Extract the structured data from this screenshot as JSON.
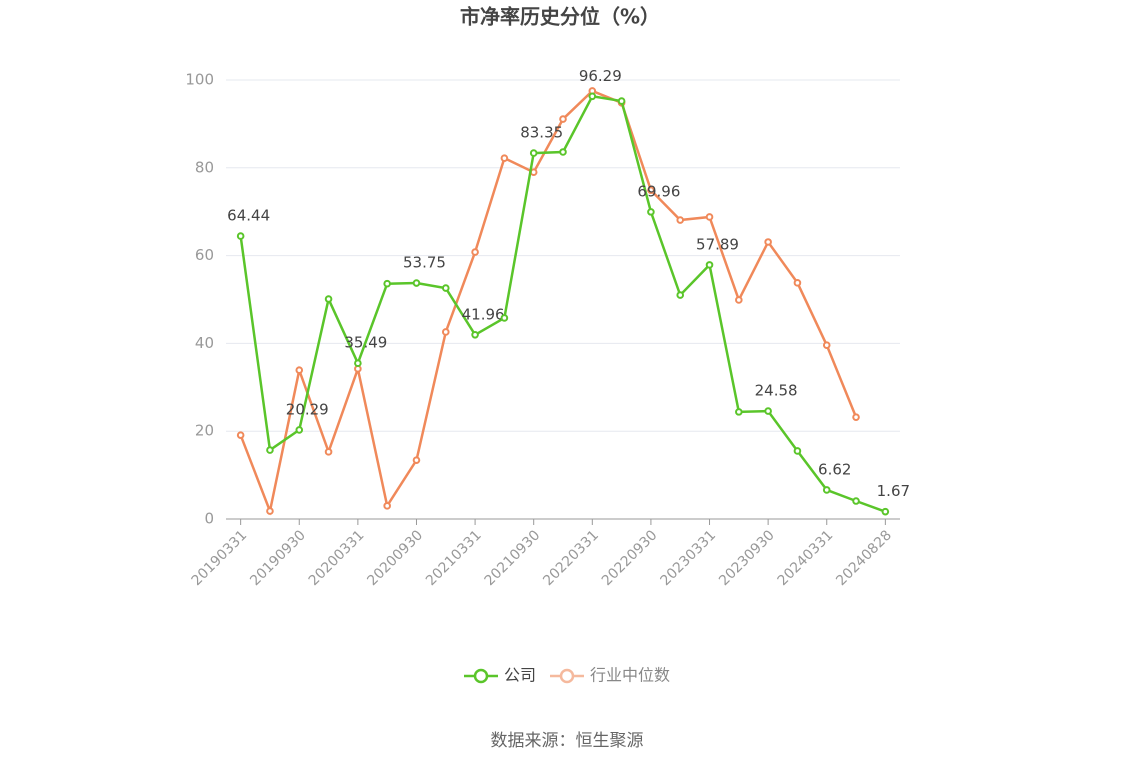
{
  "chart_data": {
    "type": "line",
    "title": "市净率历史分位（%）",
    "source": "数据来源：恒生聚源",
    "categories": [
      "20190331",
      null,
      "20190930",
      null,
      "20200331",
      null,
      "20200930",
      null,
      "20210331",
      null,
      "20210930",
      null,
      "20220331",
      null,
      "20220930",
      null,
      "20230331",
      null,
      "20230930",
      null,
      "20240331",
      null,
      "20240828"
    ],
    "series": [
      {
        "name": "公司",
        "color": "#5ac52a",
        "values": [
          64.44,
          15.7,
          20.29,
          50.1,
          35.49,
          53.6,
          53.75,
          52.6,
          41.96,
          45.8,
          83.35,
          83.6,
          96.29,
          95.2,
          69.96,
          51.0,
          57.89,
          24.4,
          24.58,
          15.5,
          6.62,
          4.1,
          1.67
        ],
        "value_labels": [
          "64.44",
          null,
          "20.29",
          null,
          "35.49",
          null,
          "53.75",
          null,
          "41.96",
          null,
          "83.35",
          null,
          "96.29",
          null,
          "69.96",
          null,
          "57.89",
          null,
          "24.58",
          null,
          "6.62",
          null,
          "1.67"
        ]
      },
      {
        "name": "行业中位数",
        "color": "#f0895a",
        "values": [
          19.1,
          1.8,
          33.9,
          15.3,
          34.2,
          3.0,
          13.4,
          42.6,
          60.8,
          82.2,
          79.0,
          91.1,
          97.5,
          94.8,
          74.9,
          68.1,
          68.8,
          49.9,
          63.1,
          53.8,
          39.6,
          23.2,
          null
        ]
      }
    ],
    "ylim": [
      0,
      100
    ],
    "yticks": [
      0,
      20,
      40,
      60,
      80,
      100
    ],
    "grid": true
  }
}
